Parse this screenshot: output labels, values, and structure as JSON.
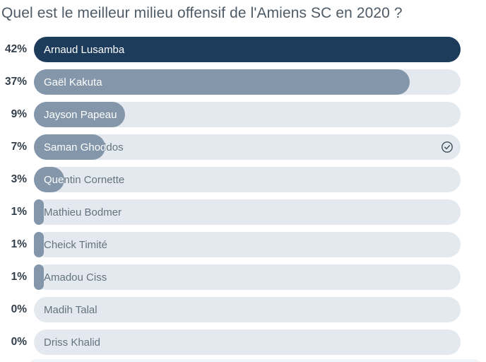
{
  "question": "Quel est le meilleur milieu offensif de l'Amiens SC en 2020 ?",
  "poll": {
    "options": [
      {
        "label": "Arnaud Lusamba",
        "percent_label": "42%",
        "value": 42,
        "selected": false
      },
      {
        "label": "Gaël Kakuta",
        "percent_label": "37%",
        "value": 37,
        "selected": false
      },
      {
        "label": "Jayson Papeau",
        "percent_label": "9%",
        "value": 9,
        "selected": false
      },
      {
        "label": "Saman Ghoddos",
        "percent_label": "7%",
        "value": 7,
        "selected": true
      },
      {
        "label": "Quentin Cornette",
        "percent_label": "3%",
        "value": 3,
        "selected": false
      },
      {
        "label": "Mathieu Bodmer",
        "percent_label": "1%",
        "value": 1,
        "selected": false
      },
      {
        "label": "Cheick Timité",
        "percent_label": "1%",
        "value": 1,
        "selected": false
      },
      {
        "label": "Amadou Ciss",
        "percent_label": "1%",
        "value": 1,
        "selected": false
      },
      {
        "label": "Madih Talal",
        "percent_label": "0%",
        "value": 0,
        "selected": false
      },
      {
        "label": "Driss Khalid",
        "percent_label": "0%",
        "value": 0,
        "selected": false
      }
    ]
  },
  "icons": {
    "selected_vote": "check-circle-icon"
  },
  "colors": {
    "leader_bar": "#1d3c5c",
    "bar_fill": "#8496aa",
    "bar_track": "#e3e9ee",
    "title_text": "#4e5a66",
    "percent_text": "#323e4a",
    "label_on_track": "#64737f",
    "label_on_bar": "#fdfefe",
    "check_icon": "#414e5b"
  },
  "chart_data": {
    "type": "bar",
    "orientation": "horizontal",
    "title": "Quel est le meilleur milieu offensif de l'Amiens SC en 2020 ?",
    "categories": [
      "Arnaud Lusamba",
      "Gaël Kakuta",
      "Jayson Papeau",
      "Saman Ghoddos",
      "Quentin Cornette",
      "Mathieu Bodmer",
      "Cheick Timité",
      "Amadou Ciss",
      "Madih Talal",
      "Driss Khalid"
    ],
    "values": [
      42,
      37,
      9,
      7,
      3,
      1,
      1,
      1,
      0,
      0
    ],
    "unit": "%",
    "bar_scale": "relative-to-max",
    "annotations": [
      "check mark on voted option: Saman Ghoddos"
    ]
  }
}
